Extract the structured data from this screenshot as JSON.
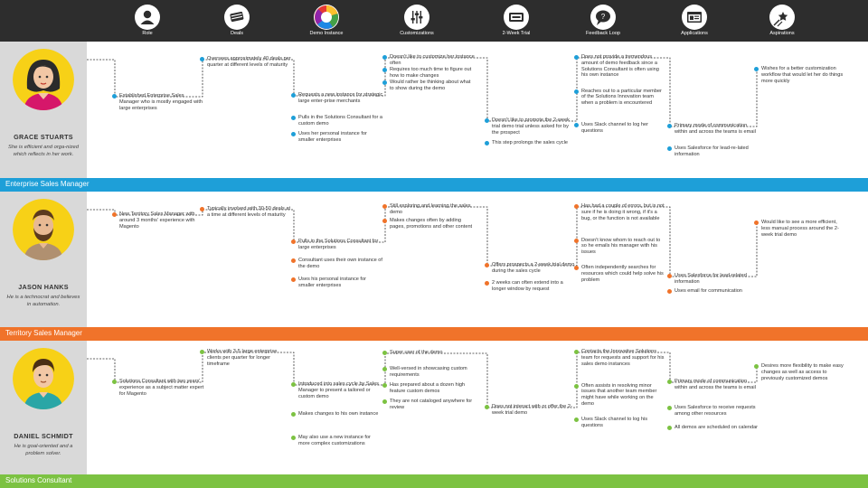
{
  "stages": [
    {
      "label": "Role",
      "icon": "person-icon"
    },
    {
      "label": "Deals",
      "icon": "deal-stack-icon"
    },
    {
      "label": "Demo Instance",
      "icon": "color-wheel-icon"
    },
    {
      "label": "Customizations",
      "icon": "sliders-icon"
    },
    {
      "label": "2-Week Trial",
      "icon": "trial-ticket-icon"
    },
    {
      "label": "Feedback Loop",
      "icon": "speech-bubble-icon"
    },
    {
      "label": "Applications",
      "icon": "application-window-icon"
    },
    {
      "label": "Aspirations",
      "icon": "shooting-star-icon"
    }
  ],
  "colors": {
    "header": "#2d2d2d",
    "persona_panel": "#d9d9d9",
    "enterprise": "#1e9fd8",
    "territory": "#f0732a",
    "solutions": "#7cc242"
  },
  "personas": [
    {
      "name": "GRACE STUARTS",
      "description": "She is efficient and orga-nized which reflects in her work.",
      "role": "Enterprise Sales Manager",
      "accent": "#1e9fd8",
      "avatar_icon": "woman-avatar-icon",
      "notes": [
        [
          "Established Enterprise Sales Manager who is mostly engaged with large enterprises"
        ],
        [
          "Oversees approximately 40 deals per quarter at different levels of maturity"
        ],
        [
          "Requests a new instance for strategic large enter-prise merchants",
          "Pulls in the Solutions Consultant for a custom demo",
          "Uses her personal instance for smaller enterprises"
        ],
        [
          "Doesn't like to customize her instance often",
          "Requires too much time to figure out how to make changes",
          "Would rather be thinking about what to show during the demo"
        ],
        [
          "Doesn't like to promote the 2-week trial demo trial unless asked for by the prospect",
          "This step prolongs the sales cycle"
        ],
        [
          "Does not provide a tremendous amount of demo feedback since a Solutions Consultant is often using his own instance",
          "Reaches out to a particular member of the Solutions Innovation team when a problem is encountered",
          "Uses Slack channel to log her questions"
        ],
        [
          "Primary mode of communication within and across the teams is email",
          "Uses Salesforce for lead-re-lated information"
        ],
        [
          "Wishes for a better customization workflow that would let her do things more quickly"
        ]
      ]
    },
    {
      "name": "JASON HANKS",
      "description": "He is a technocrat and believes in automation.",
      "role": "Territory Sales Manager",
      "accent": "#f0732a",
      "avatar_icon": "bearded-man-avatar-icon",
      "notes": [
        [
          "New Territory Sales Manager with around 3 months' experience with Magento"
        ],
        [
          "Typically involved with 30-50 deals at a time at different levels of maturity"
        ],
        [
          "Pulls in the Solutions Consultant for large enterprises",
          "Consultant uses their own instance of the demo",
          "Uses his personal instance for smaller enterprises"
        ],
        [
          "Still exploring and learning the sales demo",
          "Makes changes often by adding pages, promotions and other content"
        ],
        [
          "Offers prospects a 2-week trial demo during the sales cycle",
          "2 weeks can often extend into a longer window by request"
        ],
        [
          "Has had a couple of errors, but is not sure if he is doing it wrong, if it's a bug, or the function is not available",
          "Doesn't know whom to reach out to so he emails his manager with his issues",
          "Often independently searches for resources which could help solve his problem"
        ],
        [
          "Uses Salesforce for lead-related information",
          "Uses email for communication"
        ],
        [
          "Would like to see a more efficient, less manual process around the 2-week trial demo"
        ]
      ]
    },
    {
      "name": "DANIEL SCHMIDT",
      "description": "He is goal-oriented and a problem solver.",
      "role": "Solutions Consultant",
      "accent": "#7cc242",
      "avatar_icon": "man-avatar-icon",
      "notes": [
        [
          "Solutions Consultant with two years' experience as a subject matter expert for Magento"
        ],
        [
          "Works with 3-5 large enterprise clients per quarter for longer timeframe"
        ],
        [
          "Introduced into sales cycle by Sales Manager to present a tailored or custom demo",
          "Makes changes to his own instance",
          "May also use a new instance for more complex customizations"
        ],
        [
          "Super user of the demo",
          "Well-versed in showcasing custom requirements",
          "Has prepared about a dozen high feature custom demos",
          "They are not cataloged anywhere for review"
        ],
        [
          "Does not interact with or offer the 2-week trial demo"
        ],
        [
          "Contacts the Innovative Solutions team for requests and support for his sales demo instances",
          "Often assists in resolving minor issues that another team member might have while working on the demo",
          "Uses Slack channel to log his questions"
        ],
        [
          "Primary mode of communication within and across the teams is email",
          "Uses Salesforce to receive requests among other resources",
          "All demos are scheduled on calendar"
        ],
        [
          "Desires more flexibility to make easy changes as well as access to previously customized demos"
        ]
      ]
    }
  ]
}
